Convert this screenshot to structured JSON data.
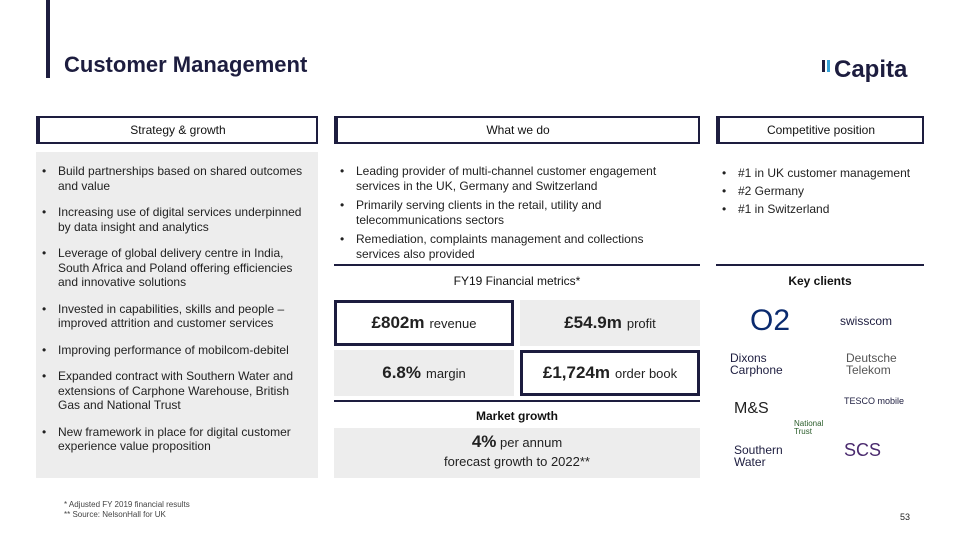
{
  "header": {
    "title": "Customer Management",
    "brand": "Capita"
  },
  "columns": {
    "strategy": {
      "heading": "Strategy & growth",
      "bullets": [
        "Build partnerships based on shared outcomes and value",
        "Increasing use of digital services underpinned by data insight and analytics",
        "Leverage of global delivery centre in India, South Africa and Poland offering efficiencies and innovative solutions",
        "Invested in capabilities, skills and people – improved attrition and customer services",
        "Improving performance of mobilcom-debitel",
        "Expanded contract with Southern Water and extensions of Carphone Warehouse, British Gas and National Trust",
        "New framework in place for digital customer experience value proposition"
      ]
    },
    "what": {
      "heading": "What we do",
      "bullets": [
        "Leading provider of multi-channel customer engagement services in the UK, Germany and Switzerland",
        "Primarily serving clients in the retail, utility and telecommunications sectors",
        "Remediation, complaints management and collections services also provided"
      ]
    },
    "competitive": {
      "heading": "Competitive position",
      "bullets": [
        "#1 in UK customer management",
        "#2 Germany",
        "#1 in Switzerland"
      ]
    }
  },
  "metrics": {
    "title": "FY19 Financial metrics*",
    "revenue": {
      "value": "£802m",
      "label": "revenue"
    },
    "profit": {
      "value": "£54.9m",
      "label": "profit"
    },
    "margin": {
      "value": "6.8%",
      "label": "margin"
    },
    "order_book": {
      "value": "£1,724m",
      "label": "order book"
    }
  },
  "market": {
    "title": "Market growth",
    "value": "4%",
    "per": "per annum",
    "note": "forecast growth to 2022**"
  },
  "key_clients": {
    "title": "Key clients",
    "logos": [
      "O2",
      "swisscom",
      "Dixons Carphone",
      "Deutsche Telekom",
      "M&S",
      "National Trust",
      "TESCO mobile",
      "Southern Water",
      "SCS"
    ]
  },
  "footnotes": [
    "* Adjusted FY 2019 financial results",
    "** Source: NelsonHall for UK"
  ],
  "page_number": "53",
  "colors": {
    "navy": "#1d1d3f",
    "panel": "#ededed",
    "accent_blue": "#35a2d8"
  }
}
